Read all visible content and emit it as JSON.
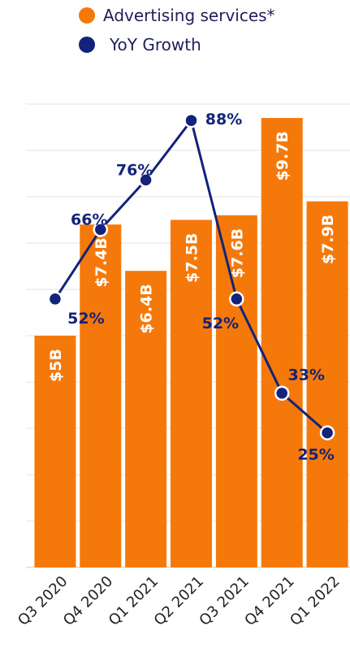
{
  "chart_data": {
    "type": "bar",
    "categories": [
      "Q3 2020",
      "Q4 2020",
      "Q1 2021",
      "Q2 2021",
      "Q3 2021",
      "Q4 2021",
      "Q1 2022"
    ],
    "series": [
      {
        "name": "Advertising services*",
        "type": "bar",
        "values": [
          5.0,
          7.4,
          6.4,
          7.5,
          7.6,
          9.7,
          7.9
        ],
        "labels": [
          "$5B",
          "$7.4B",
          "$6.4B",
          "$7.5B",
          "$7.6B",
          "$9.7B",
          "$7.9B"
        ],
        "color": "#f5790a"
      },
      {
        "name": "YoY Growth",
        "type": "line",
        "values": [
          52,
          66,
          76,
          88,
          52,
          33,
          25
        ],
        "labels": [
          "52%",
          "66%",
          "76%",
          "88%",
          "52%",
          "33%",
          "25%"
        ],
        "color": "#13237a"
      }
    ],
    "ylim": [
      0,
      10
    ],
    "grid": true,
    "legend": "top"
  }
}
